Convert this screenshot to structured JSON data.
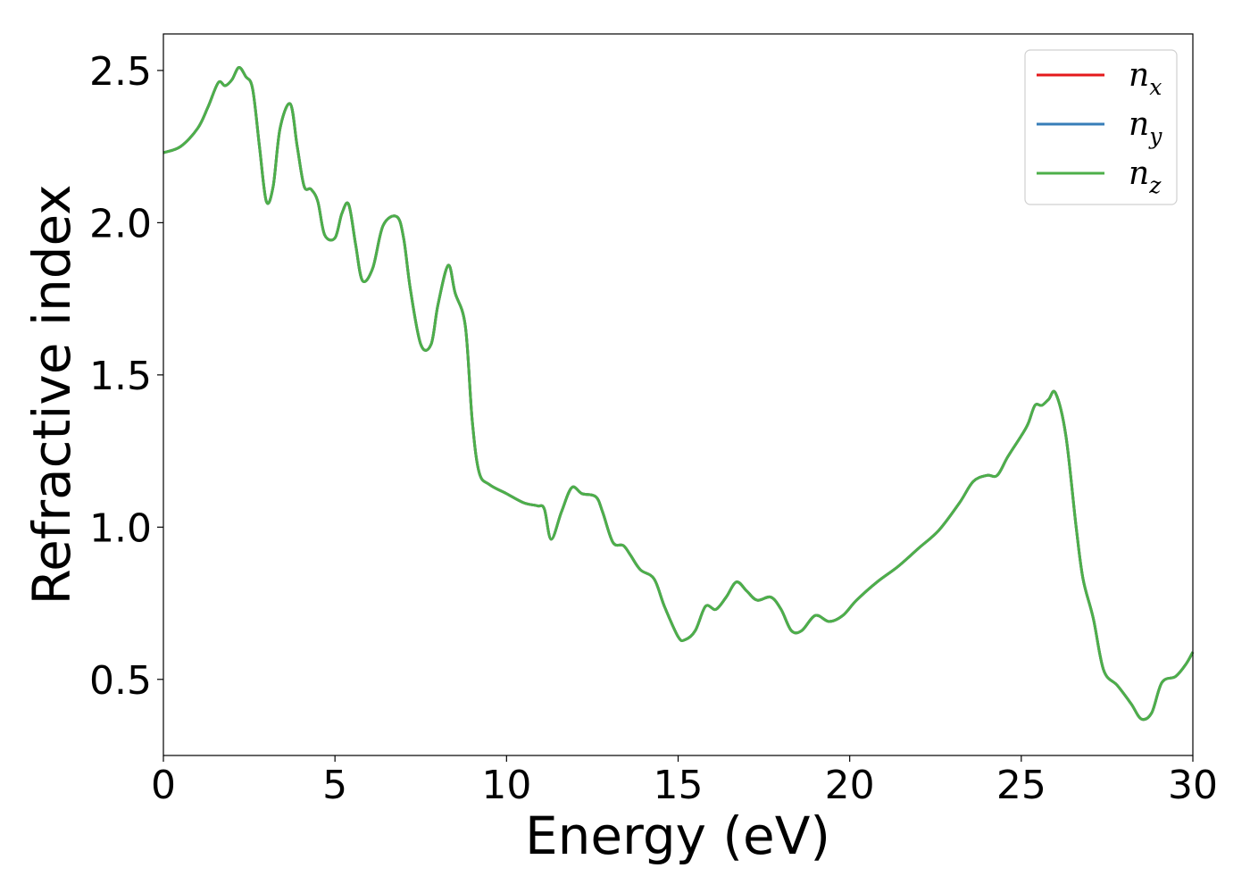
{
  "chart_data": {
    "type": "line",
    "xlabel": "Energy (eV)",
    "ylabel": "Refractive index",
    "xlim": [
      0,
      30
    ],
    "ylim": [
      0.25,
      2.62
    ],
    "xticks": [
      0,
      5,
      10,
      15,
      20,
      25,
      30
    ],
    "xtick_labels": [
      "0",
      "5",
      "10",
      "15",
      "20",
      "25",
      "30"
    ],
    "yticks": [
      0.5,
      1.0,
      1.5,
      2.0,
      2.5
    ],
    "ytick_labels": [
      "0.5",
      "1.0",
      "1.5",
      "2.0",
      "2.5"
    ],
    "grid": false,
    "legend_position": "top-right",
    "series": [
      {
        "name": "n_x",
        "base": "n",
        "sub": "x",
        "color": "#e41a1c",
        "same_as": "n_z"
      },
      {
        "name": "n_y",
        "base": "n",
        "sub": "y",
        "color": "#377eb8",
        "same_as": "n_z"
      },
      {
        "name": "n_z",
        "base": "n",
        "sub": "z",
        "color": "#4daf4a"
      }
    ],
    "x": [
      0,
      0.5,
      1.0,
      1.3,
      1.6,
      1.8,
      2.0,
      2.2,
      2.4,
      2.6,
      2.8,
      3.0,
      3.2,
      3.4,
      3.7,
      3.9,
      4.1,
      4.3,
      4.5,
      4.7,
      5.0,
      5.2,
      5.4,
      5.6,
      5.8,
      6.1,
      6.4,
      6.8,
      7.0,
      7.2,
      7.5,
      7.8,
      8.0,
      8.3,
      8.5,
      8.8,
      9.0,
      9.2,
      9.5,
      10.0,
      10.5,
      10.9,
      11.1,
      11.3,
      11.6,
      11.9,
      12.2,
      12.6,
      12.8,
      13.1,
      13.4,
      13.6,
      13.9,
      14.3,
      14.6,
      15.0,
      15.2,
      15.5,
      15.8,
      16.1,
      16.4,
      16.7,
      17.0,
      17.3,
      17.7,
      18.0,
      18.3,
      18.6,
      19.0,
      19.4,
      19.8,
      20.2,
      20.8,
      21.4,
      22.0,
      22.6,
      23.2,
      23.6,
      24.0,
      24.3,
      24.6,
      25.0,
      25.2,
      25.4,
      25.6,
      25.8,
      26.0,
      26.3,
      26.6,
      26.8,
      27.1,
      27.4,
      27.8,
      28.2,
      28.5,
      28.8,
      29.1,
      29.5,
      29.8,
      30.0
    ],
    "y": [
      2.23,
      2.25,
      2.31,
      2.38,
      2.46,
      2.45,
      2.47,
      2.51,
      2.48,
      2.44,
      2.25,
      2.07,
      2.12,
      2.31,
      2.39,
      2.25,
      2.12,
      2.11,
      2.07,
      1.96,
      1.95,
      2.03,
      2.06,
      1.93,
      1.81,
      1.85,
      1.99,
      2.02,
      1.95,
      1.78,
      1.6,
      1.6,
      1.73,
      1.86,
      1.77,
      1.66,
      1.35,
      1.18,
      1.14,
      1.11,
      1.08,
      1.07,
      1.06,
      0.96,
      1.05,
      1.13,
      1.11,
      1.1,
      1.05,
      0.95,
      0.94,
      0.91,
      0.86,
      0.83,
      0.74,
      0.64,
      0.63,
      0.66,
      0.74,
      0.73,
      0.77,
      0.82,
      0.79,
      0.76,
      0.77,
      0.73,
      0.66,
      0.66,
      0.71,
      0.69,
      0.71,
      0.76,
      0.82,
      0.87,
      0.93,
      0.99,
      1.08,
      1.15,
      1.17,
      1.17,
      1.23,
      1.3,
      1.34,
      1.4,
      1.4,
      1.42,
      1.44,
      1.3,
      1.0,
      0.83,
      0.7,
      0.53,
      0.48,
      0.42,
      0.37,
      0.39,
      0.49,
      0.51,
      0.55,
      0.59
    ]
  }
}
